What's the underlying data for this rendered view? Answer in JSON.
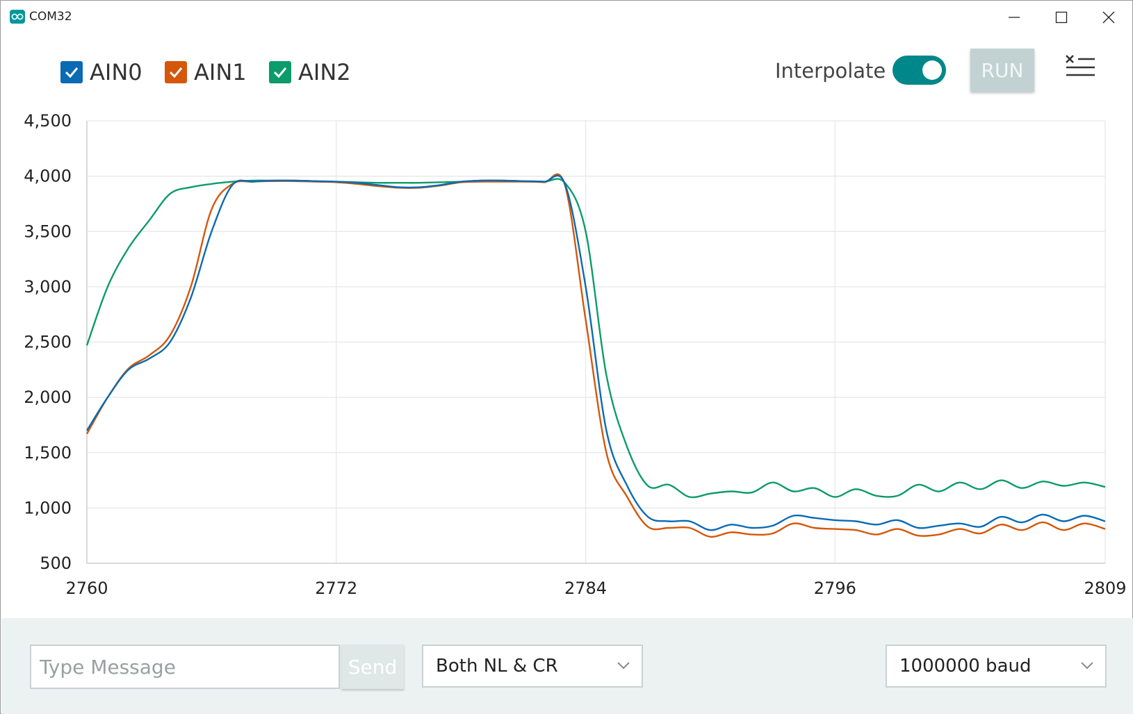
{
  "window": {
    "title": "COM32"
  },
  "legend": [
    {
      "label": "AIN0",
      "color": "#0a6ab4",
      "checked": true
    },
    {
      "label": "AIN1",
      "color": "#d4570a",
      "checked": true
    },
    {
      "label": "AIN2",
      "color": "#0c9b6a",
      "checked": true
    }
  ],
  "toolbar": {
    "interpolate_label": "Interpolate",
    "interpolate_on": true,
    "run_label": "RUN",
    "clear_icon": "clear-list-icon"
  },
  "chart_data": {
    "type": "line",
    "xlim": [
      2760,
      2809
    ],
    "ylim": [
      500,
      4500
    ],
    "x_ticks": [
      "2760",
      "2772",
      "2784",
      "2796",
      "2809"
    ],
    "y_ticks": [
      "500",
      "1,000",
      "1,500",
      "2,000",
      "2,500",
      "3,000",
      "3,500",
      "4,000",
      "4,500"
    ],
    "grid": true,
    "series": [
      {
        "name": "AIN0",
        "color": "#0a6ab4",
        "x": [
          2760,
          2761,
          2762,
          2763,
          2764,
          2765,
          2766,
          2767,
          2768,
          2769,
          2770,
          2771,
          2772,
          2773,
          2774,
          2775,
          2776,
          2777,
          2778,
          2779,
          2780,
          2781,
          2782,
          2783,
          2784,
          2785,
          2786,
          2787,
          2788,
          2789,
          2790,
          2791,
          2792,
          2793,
          2794,
          2795,
          2796,
          2797,
          2798,
          2799,
          2800,
          2801,
          2802,
          2803,
          2804,
          2805,
          2806,
          2807,
          2808,
          2809
        ],
        "y": [
          1700,
          2000,
          2250,
          2350,
          2500,
          2900,
          3500,
          3920,
          3950,
          3960,
          3960,
          3955,
          3950,
          3940,
          3920,
          3900,
          3900,
          3920,
          3950,
          3960,
          3960,
          3955,
          3950,
          3930,
          3000,
          1700,
          1200,
          920,
          880,
          880,
          800,
          850,
          820,
          840,
          930,
          910,
          890,
          880,
          850,
          890,
          820,
          840,
          860,
          830,
          920,
          870,
          940,
          880,
          930,
          880
        ]
      },
      {
        "name": "AIN1",
        "color": "#d4570a",
        "x": [
          2760,
          2761,
          2762,
          2763,
          2764,
          2765,
          2766,
          2767,
          2768,
          2769,
          2770,
          2771,
          2772,
          2773,
          2774,
          2775,
          2776,
          2777,
          2778,
          2779,
          2780,
          2781,
          2782,
          2783,
          2784,
          2785,
          2786,
          2787,
          2788,
          2789,
          2790,
          2791,
          2792,
          2793,
          2794,
          2795,
          2796,
          2797,
          2798,
          2799,
          2800,
          2801,
          2802,
          2803,
          2804,
          2805,
          2806,
          2807,
          2808,
          2809
        ],
        "y": [
          1670,
          2000,
          2260,
          2380,
          2560,
          3000,
          3700,
          3930,
          3950,
          3955,
          3955,
          3950,
          3945,
          3930,
          3910,
          3895,
          3895,
          3915,
          3945,
          3950,
          3950,
          3950,
          3945,
          3920,
          2700,
          1500,
          1100,
          830,
          820,
          820,
          740,
          780,
          760,
          770,
          860,
          820,
          810,
          800,
          760,
          810,
          750,
          760,
          810,
          770,
          850,
          800,
          870,
          800,
          860,
          810
        ]
      },
      {
        "name": "AIN2",
        "color": "#0c9b6a",
        "x": [
          2760,
          2761,
          2762,
          2763,
          2764,
          2765,
          2766,
          2767,
          2768,
          2769,
          2770,
          2771,
          2772,
          2773,
          2774,
          2775,
          2776,
          2777,
          2778,
          2779,
          2780,
          2781,
          2782,
          2783,
          2784,
          2785,
          2786,
          2787,
          2788,
          2789,
          2790,
          2791,
          2792,
          2793,
          2794,
          2795,
          2796,
          2797,
          2798,
          2799,
          2800,
          2801,
          2802,
          2803,
          2804,
          2805,
          2806,
          2807,
          2808,
          2809
        ],
        "y": [
          2470,
          3000,
          3350,
          3600,
          3840,
          3900,
          3930,
          3950,
          3960,
          3960,
          3960,
          3955,
          3950,
          3945,
          3940,
          3940,
          3940,
          3945,
          3950,
          3960,
          3960,
          3955,
          3950,
          3940,
          3500,
          2200,
          1550,
          1200,
          1210,
          1100,
          1130,
          1150,
          1140,
          1230,
          1150,
          1180,
          1100,
          1170,
          1110,
          1110,
          1210,
          1150,
          1230,
          1170,
          1250,
          1180,
          1240,
          1200,
          1230,
          1190
        ]
      }
    ]
  },
  "bottom": {
    "message_placeholder": "Type Message",
    "send_label": "Send",
    "line_ending": "Both NL & CR",
    "baud": "1000000 baud"
  }
}
